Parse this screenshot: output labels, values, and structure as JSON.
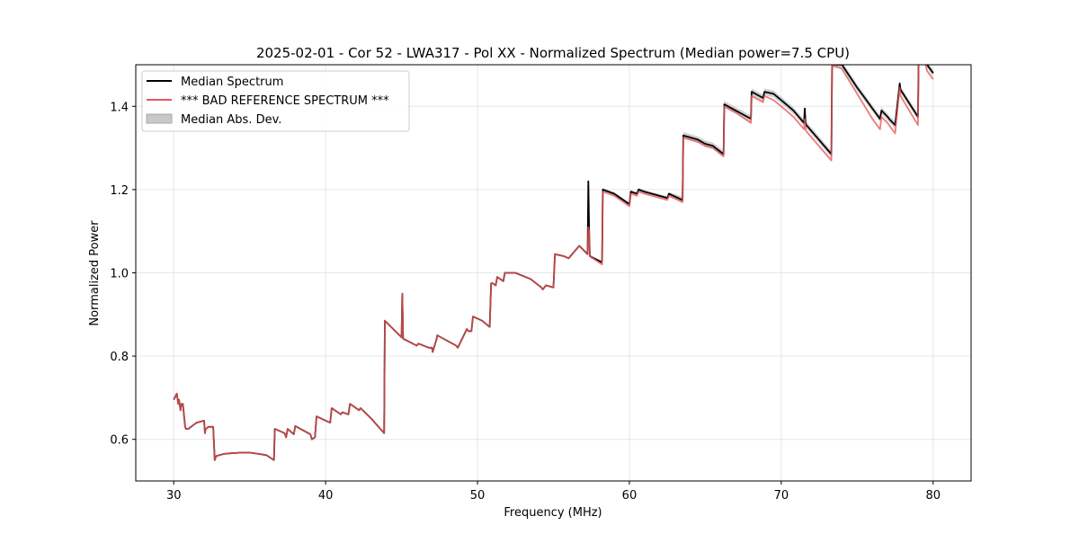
{
  "chart_data": {
    "type": "line",
    "title": "2025-02-01 - Cor 52 - LWA317 - Pol XX - Normalized Spectrum (Median power=7.5 CPU)",
    "xlabel": "Frequency (MHz)",
    "ylabel": "Normalized Power",
    "xlim": [
      27.5,
      82.5
    ],
    "ylim": [
      0.5,
      1.5
    ],
    "xticks": [
      30,
      40,
      50,
      60,
      70,
      80
    ],
    "yticks": [
      0.6,
      0.8,
      1.0,
      1.2,
      1.4
    ],
    "xtick_labels": [
      "30",
      "40",
      "50",
      "60",
      "70",
      "80"
    ],
    "ytick_labels": [
      "0.6",
      "0.8",
      "1.0",
      "1.2",
      "1.4"
    ],
    "grid": true,
    "legend_position": "top-left",
    "legend": {
      "median": "Median Spectrum",
      "reference": "*** BAD REFERENCE SPECTRUM ***",
      "mad": "Median Abs. Dev."
    },
    "colors": {
      "median": "#000000",
      "reference": "#e8585a",
      "mad": "#c8c8c8",
      "grid": "#e6e6e6"
    },
    "series": [
      {
        "name": "Median Spectrum",
        "x": [
          30.0,
          30.2,
          30.3,
          30.35,
          30.45,
          30.5,
          30.6,
          30.75,
          30.8,
          30.95,
          31.5,
          32.0,
          32.05,
          32.1,
          32.3,
          32.6,
          32.7,
          32.8,
          33.3,
          33.9,
          34.5,
          35.0,
          35.6,
          36.1,
          36.6,
          36.65,
          37.3,
          37.4,
          37.5,
          37.9,
          38.0,
          39.0,
          39.1,
          39.3,
          39.4,
          40.3,
          40.4,
          41.0,
          41.1,
          41.5,
          41.6,
          42.2,
          42.3,
          43.0,
          43.85,
          43.9,
          45.0,
          45.05,
          45.1,
          45.2,
          46.0,
          46.1,
          46.8,
          47.0,
          47.05,
          47.3,
          47.35,
          48.6,
          48.7,
          49.3,
          49.4,
          49.6,
          49.7,
          50.3,
          50.8,
          50.9,
          51.0,
          51.2,
          51.3,
          51.7,
          51.8,
          52.5,
          53.5,
          54.2,
          54.3,
          54.5,
          55.0,
          55.1,
          55.7,
          56.0,
          56.7,
          57.25,
          57.3,
          57.35,
          57.4,
          58.2,
          58.25,
          59.0,
          60.0,
          60.1,
          60.5,
          60.6,
          61.0,
          62.5,
          62.6,
          63.5,
          63.55,
          64.5,
          65.0,
          65.5,
          66.2,
          66.25,
          67.0,
          68.0,
          68.05,
          68.8,
          68.9,
          69.5,
          70.0,
          70.8,
          71.5,
          71.55,
          71.6,
          71.65,
          73.3,
          73.35,
          74.0,
          75.0,
          75.5,
          76.0,
          76.5,
          76.6,
          77.0,
          77.1,
          77.5,
          77.8,
          77.85,
          79.0,
          79.05,
          79.5,
          79.6,
          80.0
        ],
        "values": [
          0.695,
          0.71,
          0.685,
          0.695,
          0.67,
          0.685,
          0.685,
          0.63,
          0.625,
          0.625,
          0.64,
          0.645,
          0.615,
          0.625,
          0.63,
          0.63,
          0.55,
          0.56,
          0.565,
          0.567,
          0.568,
          0.568,
          0.565,
          0.562,
          0.55,
          0.625,
          0.615,
          0.605,
          0.625,
          0.612,
          0.632,
          0.612,
          0.6,
          0.605,
          0.655,
          0.64,
          0.675,
          0.66,
          0.665,
          0.66,
          0.685,
          0.67,
          0.675,
          0.65,
          0.615,
          0.885,
          0.845,
          0.95,
          0.842,
          0.84,
          0.825,
          0.83,
          0.82,
          0.82,
          0.81,
          0.84,
          0.85,
          0.825,
          0.82,
          0.865,
          0.86,
          0.86,
          0.895,
          0.885,
          0.87,
          0.975,
          0.975,
          0.97,
          0.99,
          0.98,
          1.0,
          1.0,
          0.985,
          0.965,
          0.96,
          0.97,
          0.965,
          1.045,
          1.04,
          1.035,
          1.065,
          1.045,
          1.22,
          1.1,
          1.04,
          1.025,
          1.2,
          1.19,
          1.165,
          1.195,
          1.19,
          1.2,
          1.195,
          1.18,
          1.19,
          1.175,
          1.33,
          1.32,
          1.31,
          1.305,
          1.285,
          1.405,
          1.39,
          1.37,
          1.435,
          1.42,
          1.435,
          1.43,
          1.415,
          1.39,
          1.36,
          1.395,
          1.36,
          1.355,
          1.285,
          1.5,
          1.5,
          1.445,
          1.42,
          1.395,
          1.37,
          1.39,
          1.375,
          1.37,
          1.355,
          1.455,
          1.44,
          1.375,
          1.52,
          1.52,
          1.5,
          1.48
        ]
      },
      {
        "name": "*** BAD REFERENCE SPECTRUM ***",
        "x": [
          30.0,
          30.2,
          30.3,
          30.35,
          30.45,
          30.5,
          30.6,
          30.75,
          30.8,
          30.95,
          31.5,
          32.0,
          32.05,
          32.1,
          32.3,
          32.6,
          32.7,
          32.8,
          33.3,
          33.9,
          34.5,
          35.0,
          35.6,
          36.1,
          36.6,
          36.65,
          37.3,
          37.4,
          37.5,
          37.9,
          38.0,
          39.0,
          39.1,
          39.3,
          39.4,
          40.3,
          40.4,
          41.0,
          41.1,
          41.5,
          41.6,
          42.2,
          42.3,
          43.0,
          43.85,
          43.9,
          45.0,
          45.05,
          45.1,
          45.2,
          46.0,
          46.1,
          46.8,
          47.0,
          47.05,
          47.3,
          47.35,
          48.6,
          48.7,
          49.3,
          49.4,
          49.6,
          49.7,
          50.3,
          50.8,
          50.9,
          51.0,
          51.2,
          51.3,
          51.7,
          51.8,
          52.5,
          53.5,
          54.2,
          54.3,
          54.5,
          55.0,
          55.1,
          55.7,
          56.0,
          56.7,
          57.25,
          57.3,
          57.35,
          57.4,
          58.2,
          58.25,
          59.0,
          60.0,
          60.1,
          60.5,
          60.6,
          61.0,
          62.5,
          62.6,
          63.5,
          63.55,
          64.5,
          65.0,
          65.5,
          66.2,
          66.25,
          67.0,
          68.0,
          68.05,
          68.8,
          68.9,
          69.5,
          70.0,
          70.8,
          71.5,
          71.55,
          71.6,
          71.65,
          73.3,
          73.35,
          74.0,
          75.0,
          75.5,
          76.0,
          76.5,
          76.6,
          77.0,
          77.1,
          77.5,
          77.8,
          77.85,
          79.0,
          79.05,
          79.5,
          79.6,
          80.0
        ],
        "values": [
          0.695,
          0.71,
          0.685,
          0.695,
          0.67,
          0.685,
          0.685,
          0.63,
          0.625,
          0.625,
          0.64,
          0.645,
          0.615,
          0.625,
          0.63,
          0.63,
          0.55,
          0.56,
          0.565,
          0.567,
          0.568,
          0.568,
          0.565,
          0.562,
          0.55,
          0.625,
          0.615,
          0.605,
          0.625,
          0.612,
          0.632,
          0.612,
          0.6,
          0.605,
          0.655,
          0.64,
          0.675,
          0.66,
          0.665,
          0.66,
          0.685,
          0.67,
          0.675,
          0.65,
          0.615,
          0.885,
          0.845,
          0.95,
          0.842,
          0.84,
          0.825,
          0.83,
          0.82,
          0.82,
          0.81,
          0.84,
          0.85,
          0.825,
          0.82,
          0.865,
          0.86,
          0.86,
          0.895,
          0.885,
          0.87,
          0.975,
          0.975,
          0.97,
          0.99,
          0.98,
          1.0,
          1.0,
          0.985,
          0.965,
          0.96,
          0.97,
          0.965,
          1.045,
          1.04,
          1.035,
          1.065,
          1.045,
          1.11,
          1.1,
          1.04,
          1.02,
          1.195,
          1.185,
          1.16,
          1.19,
          1.185,
          1.195,
          1.19,
          1.175,
          1.185,
          1.17,
          1.325,
          1.315,
          1.305,
          1.3,
          1.28,
          1.4,
          1.385,
          1.36,
          1.425,
          1.41,
          1.425,
          1.415,
          1.4,
          1.375,
          1.345,
          1.37,
          1.345,
          1.34,
          1.27,
          1.5,
          1.49,
          1.43,
          1.4,
          1.37,
          1.345,
          1.375,
          1.36,
          1.355,
          1.335,
          1.445,
          1.425,
          1.355,
          1.51,
          1.5,
          1.485,
          1.465
        ]
      }
    ]
  }
}
